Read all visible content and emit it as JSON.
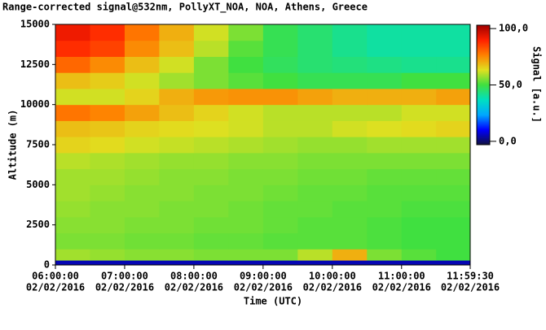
{
  "chart_data": {
    "type": "heatmap",
    "title": "Range-corrected signal@532nm, PollyXT_NOA, NOA, Athens, Greece",
    "x_label": "Time (UTC)",
    "y_label": "Altitude (m)",
    "colorbar_label": "Signal [a.u.]",
    "xlim": [
      6,
      11.9917
    ],
    "xticks": [
      {
        "value": 6,
        "label": [
          "06:00:00",
          "02/02/2016"
        ]
      },
      {
        "value": 7,
        "label": [
          "07:00:00",
          "02/02/2016"
        ]
      },
      {
        "value": 8,
        "label": [
          "08:00:00",
          "02/02/2016"
        ]
      },
      {
        "value": 9,
        "label": [
          "09:00:00",
          "02/02/2016"
        ]
      },
      {
        "value": 10,
        "label": [
          "10:00:00",
          "02/02/2016"
        ]
      },
      {
        "value": 11,
        "label": [
          "11:00:00",
          "02/02/2016"
        ]
      },
      {
        "value": 11.9917,
        "label": [
          "11:59:30",
          "02/02/2016"
        ]
      }
    ],
    "ylim": [
      0,
      15000
    ],
    "yticks": [
      0,
      2500,
      5000,
      7500,
      10000,
      12500,
      15000
    ],
    "clim": [
      -3,
      103
    ],
    "cticks": [
      {
        "value": 0,
        "label": "0,0"
      },
      {
        "value": 50,
        "label": "50,0"
      },
      {
        "value": 100,
        "label": "100,0"
      }
    ],
    "colormap": [
      "#101040",
      "#0000ff",
      "#00a8ff",
      "#00e0c0",
      "#40e040",
      "#e0e020",
      "#ff8000",
      "#ff2000",
      "#a00000"
    ],
    "xbins": [
      6,
      6.5,
      7,
      7.5,
      8,
      8.5,
      9,
      9.5,
      10,
      10.5,
      11,
      11.5,
      11.9917
    ],
    "ybins": [
      0,
      300,
      1000,
      2000,
      3000,
      4000,
      5000,
      6000,
      7000,
      8000,
      9000,
      10000,
      11000,
      12000,
      13000,
      14000,
      15000
    ],
    "z": [
      [
        5,
        5,
        5,
        5,
        5,
        5,
        5,
        5,
        5,
        5,
        5,
        5
      ],
      [
        58,
        57,
        56,
        56,
        55,
        55,
        55,
        60,
        70,
        55,
        52,
        50
      ],
      [
        55,
        55,
        54,
        54,
        53,
        53,
        52,
        52,
        52,
        51,
        50,
        50
      ],
      [
        56,
        56,
        55,
        55,
        54,
        54,
        53,
        52,
        52,
        51,
        50,
        50
      ],
      [
        57,
        56,
        56,
        55,
        55,
        54,
        53,
        53,
        52,
        52,
        51,
        51
      ],
      [
        58,
        57,
        56,
        56,
        55,
        55,
        54,
        53,
        53,
        52,
        52,
        52
      ],
      [
        58,
        58,
        57,
        56,
        56,
        55,
        55,
        54,
        54,
        53,
        53,
        53
      ],
      [
        60,
        59,
        58,
        57,
        57,
        56,
        56,
        55,
        55,
        55,
        55,
        55
      ],
      [
        65,
        64,
        62,
        61,
        60,
        59,
        58,
        57,
        57,
        58,
        58,
        58
      ],
      [
        68,
        67,
        65,
        64,
        63,
        62,
        60,
        60,
        62,
        63,
        64,
        65
      ],
      [
        78,
        76,
        72,
        68,
        65,
        62,
        60,
        60,
        60,
        60,
        62,
        62
      ],
      [
        62,
        62,
        65,
        70,
        73,
        74,
        74,
        72,
        70,
        70,
        70,
        72
      ],
      [
        68,
        66,
        62,
        58,
        55,
        52,
        50,
        48,
        48,
        48,
        50,
        50
      ],
      [
        80,
        75,
        68,
        62,
        55,
        50,
        47,
        45,
        44,
        43,
        42,
        42
      ],
      [
        88,
        85,
        75,
        68,
        60,
        52,
        48,
        45,
        42,
        40,
        40,
        40
      ],
      [
        92,
        88,
        78,
        70,
        62,
        55,
        48,
        45,
        42,
        40,
        40,
        40
      ]
    ]
  }
}
